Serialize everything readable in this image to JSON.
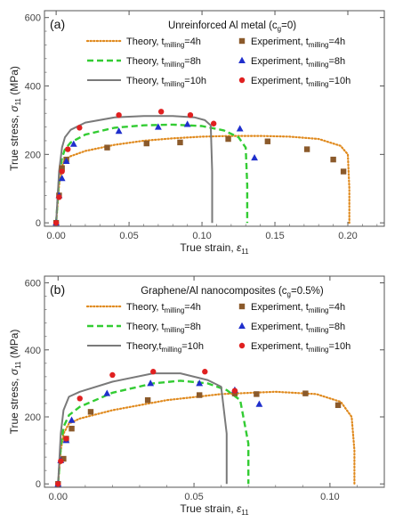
{
  "chart_data": [
    {
      "type": "line",
      "panel_label": "(a)",
      "title": "Unreinforced Al metal (c",
      "title_sub": "g",
      "title_tail": "=0)",
      "xlabel": "True strain, ",
      "xlabel_symbol": "ε",
      "xlabel_sub": "11",
      "ylabel": "True stress, ",
      "ylabel_symbol": "σ",
      "ylabel_sub": "11",
      "ylabel_unit": " (MPa)",
      "xlim": [
        -0.008,
        0.225
      ],
      "ylim": [
        -10,
        620
      ],
      "xticks": [
        0.0,
        0.05,
        0.1,
        0.15,
        0.2
      ],
      "xtick_labels": [
        "0.00",
        "0.05",
        "0.10",
        "0.15",
        "0.20"
      ],
      "yticks": [
        0,
        200,
        400,
        600
      ],
      "ytick_labels": [
        "0",
        "200",
        "400",
        "600"
      ],
      "grid": false,
      "series": [
        {
          "name": "Theory, t",
          "name_sub": "milling",
          "name_tail": "=4h",
          "style": "dotted",
          "color": "#E08A1E",
          "x": [
            0.0,
            0.002,
            0.004,
            0.006,
            0.01,
            0.02,
            0.04,
            0.06,
            0.08,
            0.1,
            0.12,
            0.14,
            0.16,
            0.18,
            0.195,
            0.2,
            0.201,
            0.201
          ],
          "y": [
            0,
            110,
            165,
            185,
            195,
            210,
            228,
            240,
            247,
            252,
            254,
            254,
            252,
            245,
            225,
            200,
            100,
            0
          ]
        },
        {
          "name": "Theory, t",
          "name_sub": "milling",
          "name_tail": "=8h",
          "style": "dashed",
          "color": "#33CC33",
          "x": [
            0.0,
            0.002,
            0.004,
            0.006,
            0.01,
            0.02,
            0.04,
            0.06,
            0.08,
            0.1,
            0.115,
            0.125,
            0.13,
            0.131,
            0.131
          ],
          "y": [
            0,
            130,
            190,
            215,
            235,
            258,
            278,
            285,
            287,
            283,
            270,
            250,
            220,
            110,
            0
          ]
        },
        {
          "name": "Theory, t",
          "name_sub": "milling",
          "name_tail": "=10h",
          "style": "solid",
          "color": "#7A7A7A",
          "x": [
            0.0,
            0.002,
            0.004,
            0.006,
            0.01,
            0.02,
            0.04,
            0.06,
            0.08,
            0.095,
            0.102,
            0.106,
            0.107,
            0.107
          ],
          "y": [
            0,
            150,
            220,
            250,
            272,
            293,
            308,
            312,
            312,
            308,
            300,
            285,
            150,
            0
          ]
        },
        {
          "name": "Experiment, t",
          "name_sub": "milling",
          "name_tail": "=4h",
          "marker": "square",
          "color": "#8B5A2B",
          "x": [
            0.0,
            0.002,
            0.004,
            0.007,
            0.035,
            0.062,
            0.085,
            0.118,
            0.145,
            0.172,
            0.19,
            0.197
          ],
          "y": [
            0,
            80,
            160,
            185,
            220,
            232,
            235,
            245,
            238,
            215,
            185,
            150
          ]
        },
        {
          "name": "Experiment, t",
          "name_sub": "milling",
          "name_tail": "=8h",
          "marker": "triangle",
          "color": "#1F2FCC",
          "x": [
            0.0,
            0.002,
            0.004,
            0.007,
            0.012,
            0.043,
            0.07,
            0.09,
            0.126,
            0.136
          ],
          "y": [
            0,
            80,
            130,
            180,
            230,
            268,
            280,
            288,
            275,
            190
          ]
        },
        {
          "name": "Experiment, t",
          "name_sub": "milling",
          "name_tail": "=10h",
          "marker": "circle",
          "color": "#E02020",
          "x": [
            0.0,
            0.002,
            0.004,
            0.008,
            0.016,
            0.043,
            0.072,
            0.092,
            0.108
          ],
          "y": [
            0,
            75,
            150,
            215,
            278,
            315,
            325,
            315,
            290
          ]
        }
      ]
    },
    {
      "type": "line",
      "panel_label": "(b)",
      "title": "Graphene/Al nanocomposites (c",
      "title_sub": "g",
      "title_tail": "=0.5%)",
      "xlabel": "True strain, ",
      "xlabel_symbol": "ε",
      "xlabel_sub": "11",
      "ylabel": "True stress, ",
      "ylabel_symbol": "σ",
      "ylabel_sub": "11",
      "ylabel_unit": " (MPa)",
      "xlim": [
        -0.005,
        0.12
      ],
      "ylim": [
        -10,
        620
      ],
      "xticks": [
        0.0,
        0.05,
        0.1
      ],
      "xtick_labels": [
        "0.00",
        "0.05",
        "0.10"
      ],
      "yticks": [
        0,
        200,
        400,
        600
      ],
      "ytick_labels": [
        "0",
        "200",
        "400",
        "600"
      ],
      "grid": false,
      "series": [
        {
          "name": "Theory, t",
          "name_sub": "milling",
          "name_tail": "=4h",
          "style": "dotted",
          "color": "#E08A1E",
          "x": [
            0.0,
            0.001,
            0.002,
            0.004,
            0.008,
            0.02,
            0.04,
            0.06,
            0.08,
            0.095,
            0.104,
            0.108,
            0.109,
            0.109
          ],
          "y": [
            0,
            100,
            150,
            180,
            195,
            220,
            250,
            268,
            275,
            268,
            245,
            200,
            100,
            0
          ]
        },
        {
          "name": "Theory, t",
          "name_sub": "milling",
          "name_tail": "=8h",
          "style": "dashed",
          "color": "#33CC33",
          "x": [
            0.0,
            0.001,
            0.002,
            0.004,
            0.008,
            0.02,
            0.035,
            0.045,
            0.055,
            0.062,
            0.067,
            0.07,
            0.07
          ],
          "y": [
            0,
            110,
            170,
            205,
            230,
            272,
            300,
            308,
            300,
            280,
            250,
            120,
            0
          ]
        },
        {
          "name": "Theory,t",
          "name_sub": "milling",
          "name_tail": "=10h",
          "style": "solid",
          "color": "#7A7A7A",
          "x": [
            0.0,
            0.001,
            0.002,
            0.004,
            0.008,
            0.02,
            0.035,
            0.045,
            0.055,
            0.06,
            0.062,
            0.062
          ],
          "y": [
            0,
            150,
            220,
            260,
            275,
            305,
            330,
            330,
            310,
            290,
            150,
            0
          ]
        },
        {
          "name": "Experiment, t",
          "name_sub": "milling",
          "name_tail": "=4h",
          "marker": "square",
          "color": "#8B5A2B",
          "x": [
            0.0,
            0.002,
            0.003,
            0.005,
            0.012,
            0.033,
            0.052,
            0.065,
            0.073,
            0.091,
            0.103
          ],
          "y": [
            0,
            75,
            135,
            165,
            215,
            250,
            265,
            270,
            268,
            270,
            235
          ]
        },
        {
          "name": "Experiment, t",
          "name_sub": "milling",
          "name_tail": "=8h",
          "marker": "triangle",
          "color": "#1F2FCC",
          "x": [
            0.0,
            0.001,
            0.003,
            0.005,
            0.018,
            0.034,
            0.052,
            0.065,
            0.074
          ],
          "y": [
            0,
            70,
            130,
            190,
            270,
            300,
            300,
            280,
            238
          ]
        },
        {
          "name": "Experiment, t",
          "name_sub": "milling",
          "name_tail": "=10h",
          "marker": "circle",
          "color": "#E02020",
          "x": [
            0.0,
            0.001,
            0.003,
            0.008,
            0.02,
            0.035,
            0.054,
            0.065
          ],
          "y": [
            0,
            68,
            135,
            255,
            325,
            335,
            335,
            278
          ]
        }
      ]
    }
  ]
}
